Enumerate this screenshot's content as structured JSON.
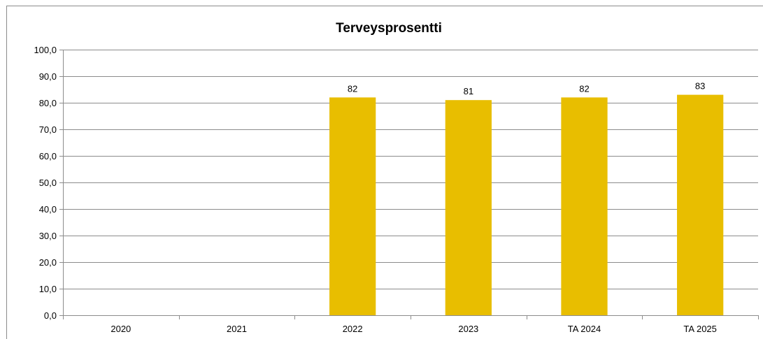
{
  "chart_data": {
    "type": "bar",
    "title": "Terveysprosentti",
    "xlabel": "",
    "ylabel": "",
    "categories": [
      "2020",
      "2021",
      "2022",
      "2023",
      "TA 2024",
      "TA 2025"
    ],
    "values": [
      null,
      null,
      82,
      81,
      82,
      83
    ],
    "data_labels": [
      "",
      "",
      "82",
      "81",
      "82",
      "83"
    ],
    "ylim": [
      0,
      100
    ],
    "yticks": [
      "0,0",
      "10,0",
      "20,0",
      "30,0",
      "40,0",
      "50,0",
      "60,0",
      "70,0",
      "80,0",
      "90,0",
      "100,0"
    ],
    "grid": true,
    "legend": "none",
    "bar_color": "#E8BE00",
    "grid_color": "#8c8c8c"
  }
}
